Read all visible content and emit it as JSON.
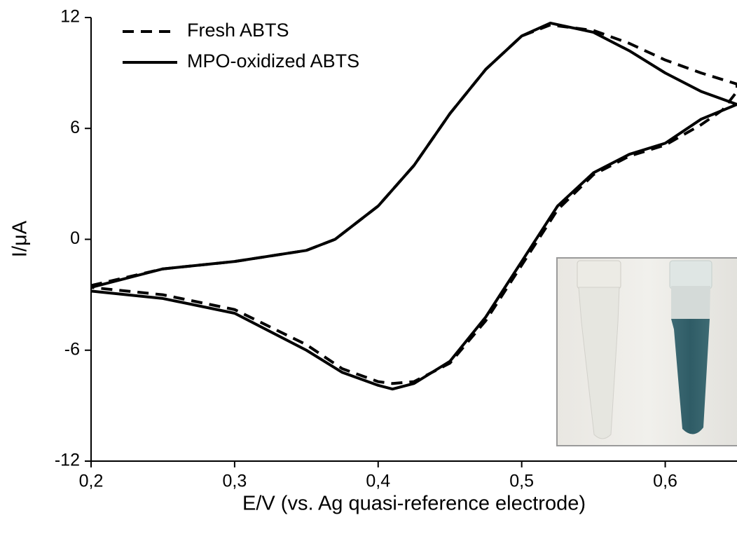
{
  "chart_data": {
    "type": "line",
    "x_label": "E/V (vs. Ag quasi-reference electrode)",
    "y_label": "I/μA",
    "xlim": [
      0.2,
      0.65
    ],
    "ylim": [
      -12,
      12
    ],
    "xticks": [
      {
        "value": 0.2,
        "label": "0,2"
      },
      {
        "value": 0.3,
        "label": "0,3"
      },
      {
        "value": 0.4,
        "label": "0,4"
      },
      {
        "value": 0.5,
        "label": "0,5"
      },
      {
        "value": 0.6,
        "label": "0,6"
      }
    ],
    "yticks": [
      -12,
      -6,
      0,
      6,
      12
    ],
    "legend": "top-left",
    "series": [
      {
        "name": "Fresh ABTS",
        "color": "#000000",
        "linestyle": "dashed",
        "x": [
          0.2,
          0.25,
          0.3,
          0.35,
          0.37,
          0.4,
          0.425,
          0.45,
          0.475,
          0.5,
          0.52,
          0.55,
          0.575,
          0.6,
          0.625,
          0.65,
          0.65,
          0.64,
          0.625,
          0.6,
          0.575,
          0.55,
          0.525,
          0.5,
          0.475,
          0.45,
          0.425,
          0.41,
          0.4,
          0.375,
          0.35,
          0.3,
          0.25,
          0.2
        ],
        "values": [
          -2.5,
          -1.6,
          -1.2,
          -0.6,
          0.0,
          1.8,
          4.0,
          6.8,
          9.2,
          11.0,
          11.6,
          11.3,
          10.6,
          9.7,
          9.0,
          8.4,
          8.0,
          7.0,
          6.2,
          5.1,
          4.5,
          3.5,
          1.6,
          -1.4,
          -4.4,
          -6.7,
          -7.7,
          -7.8,
          -7.7,
          -7.0,
          -5.7,
          -3.8,
          -3.0,
          -2.6
        ]
      },
      {
        "name": "MPO-oxidized ABTS",
        "color": "#000000",
        "linestyle": "solid",
        "x": [
          0.2,
          0.25,
          0.3,
          0.35,
          0.37,
          0.4,
          0.425,
          0.45,
          0.475,
          0.5,
          0.52,
          0.55,
          0.575,
          0.6,
          0.625,
          0.65,
          0.65,
          0.625,
          0.6,
          0.575,
          0.55,
          0.525,
          0.5,
          0.475,
          0.45,
          0.425,
          0.41,
          0.4,
          0.375,
          0.35,
          0.3,
          0.25,
          0.2
        ],
        "values": [
          -2.6,
          -1.6,
          -1.2,
          -0.6,
          0.0,
          1.8,
          4.0,
          6.8,
          9.2,
          11.0,
          11.7,
          11.2,
          10.2,
          9.0,
          8.0,
          7.3,
          7.3,
          6.5,
          5.2,
          4.6,
          3.6,
          1.8,
          -1.2,
          -4.2,
          -6.6,
          -7.8,
          -8.1,
          -7.9,
          -7.2,
          -6.0,
          -4.0,
          -3.2,
          -2.8
        ]
      }
    ]
  }
}
